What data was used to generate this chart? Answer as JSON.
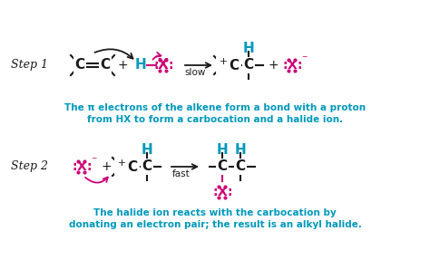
{
  "bg_color": "#ffffff",
  "dark_color": "#1a1a1a",
  "cyan_color": "#0099bb",
  "magenta_color": "#cc0077",
  "step1_desc_line1": "The π electrons of the alkene form a bond with a proton",
  "step1_desc_line2": "from HX to form a carbocation and a halide ion.",
  "step2_desc_line1": "The halide ion reacts with the carbocation by",
  "step2_desc_line2": "donating an electron pair; the result is an alkyl halide.",
  "slow_label": "slow",
  "fast_label": "fast",
  "figw": 4.74,
  "figh": 2.87,
  "dpi": 100
}
